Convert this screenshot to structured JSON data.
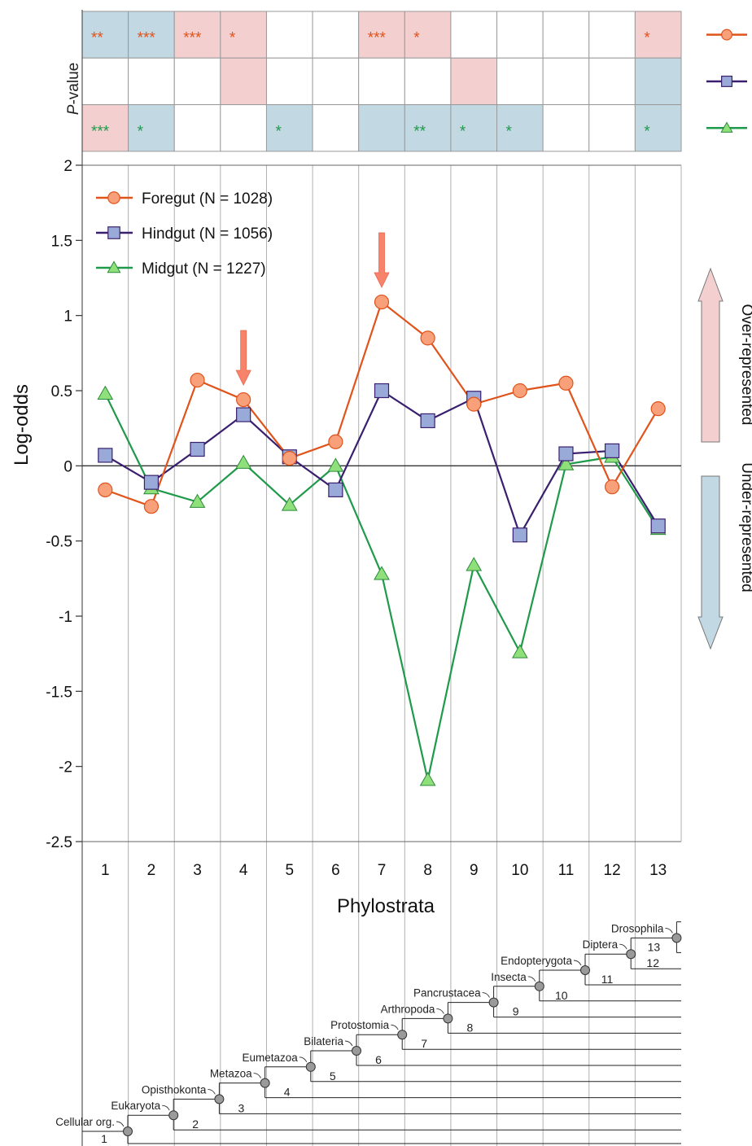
{
  "pvalue_label_prefix": "P",
  "pvalue_label_suffix": "-value",
  "pvalue_grid": {
    "foregut": [
      {
        "fill": "blue",
        "stars": "**"
      },
      {
        "fill": "blue",
        "stars": "***"
      },
      {
        "fill": "pink",
        "stars": "***"
      },
      {
        "fill": "pink",
        "stars": "*"
      },
      {
        "fill": "none",
        "stars": ""
      },
      {
        "fill": "none",
        "stars": ""
      },
      {
        "fill": "pink",
        "stars": "***"
      },
      {
        "fill": "pink",
        "stars": "*"
      },
      {
        "fill": "none",
        "stars": ""
      },
      {
        "fill": "none",
        "stars": ""
      },
      {
        "fill": "none",
        "stars": ""
      },
      {
        "fill": "none",
        "stars": ""
      },
      {
        "fill": "pink",
        "stars": "*"
      }
    ],
    "hindgut": [
      {
        "fill": "none",
        "stars": ""
      },
      {
        "fill": "none",
        "stars": ""
      },
      {
        "fill": "none",
        "stars": ""
      },
      {
        "fill": "pink",
        "stars": ""
      },
      {
        "fill": "none",
        "stars": ""
      },
      {
        "fill": "none",
        "stars": ""
      },
      {
        "fill": "none",
        "stars": ""
      },
      {
        "fill": "none",
        "stars": ""
      },
      {
        "fill": "pink",
        "stars": ""
      },
      {
        "fill": "none",
        "stars": ""
      },
      {
        "fill": "none",
        "stars": ""
      },
      {
        "fill": "none",
        "stars": ""
      },
      {
        "fill": "blue",
        "stars": ""
      }
    ],
    "midgut": [
      {
        "fill": "pink",
        "stars": "***"
      },
      {
        "fill": "blue",
        "stars": "*"
      },
      {
        "fill": "none",
        "stars": ""
      },
      {
        "fill": "none",
        "stars": ""
      },
      {
        "fill": "blue",
        "stars": "*"
      },
      {
        "fill": "none",
        "stars": ""
      },
      {
        "fill": "blue",
        "stars": ""
      },
      {
        "fill": "blue",
        "stars": "**"
      },
      {
        "fill": "blue",
        "stars": "*"
      },
      {
        "fill": "blue",
        "stars": "*"
      },
      {
        "fill": "none",
        "stars": ""
      },
      {
        "fill": "none",
        "stars": ""
      },
      {
        "fill": "blue",
        "stars": "*"
      }
    ]
  },
  "chart_data": {
    "type": "line",
    "xlabel": "Phylostrata",
    "ylabel": "Log-odds",
    "ylim": [
      -2.5,
      2
    ],
    "yticks": [
      "2",
      "1.5",
      "1",
      "0.5",
      "0",
      "-0.5",
      "-1",
      "-1.5",
      "-2",
      "-2.5"
    ],
    "x": [
      1,
      2,
      3,
      4,
      5,
      6,
      7,
      8,
      9,
      10,
      11,
      12,
      13
    ],
    "series": [
      {
        "name": "Foregut",
        "legend_label": "Foregut (N =  1028)",
        "marker": "circle",
        "line_color": "#e0531b",
        "marker_fill": "#f7a07a",
        "values": [
          -0.16,
          -0.27,
          0.57,
          0.44,
          0.05,
          0.16,
          1.09,
          0.85,
          0.41,
          0.5,
          0.55,
          -0.14,
          0.38
        ]
      },
      {
        "name": "Hindgut",
        "legend_label": "Hindgut (N =  1056)",
        "marker": "square",
        "line_color": "#3a1f6e",
        "marker_fill": "#9aaad8",
        "values": [
          0.07,
          -0.11,
          0.11,
          0.34,
          0.06,
          -0.16,
          0.5,
          0.3,
          0.45,
          -0.46,
          0.08,
          0.1,
          -0.4
        ]
      },
      {
        "name": "Midgut",
        "legend_label": "Midgut (N =  1227)",
        "marker": "triangle",
        "line_color": "#1f9a4a",
        "marker_fill": "#8fe07a",
        "values": [
          0.48,
          -0.15,
          -0.24,
          0.02,
          -0.26,
          0.0,
          -0.72,
          -2.09,
          -0.66,
          -1.24,
          0.01,
          0.06,
          -0.42
        ]
      }
    ],
    "highlight_arrows_at": [
      4,
      7
    ],
    "side_labels": {
      "over": "Over-represented",
      "under": "Under-represented"
    },
    "colors": {
      "pink": "#f4cfcf",
      "blue": "#c2d8e3",
      "arrow": "#f7836b"
    }
  },
  "tree": {
    "clades": [
      {
        "label": "Cellular org.",
        "num": "1"
      },
      {
        "label": "Eukaryota",
        "num": "2"
      },
      {
        "label": "Opisthokonta",
        "num": "3"
      },
      {
        "label": "Metazoa",
        "num": "4"
      },
      {
        "label": "Eumetazoa",
        "num": "5"
      },
      {
        "label": "Bilateria",
        "num": "6"
      },
      {
        "label": "Protostomia",
        "num": "7"
      },
      {
        "label": "Arthropoda",
        "num": "8"
      },
      {
        "label": "Pancrustacea",
        "num": "9"
      },
      {
        "label": "Insecta",
        "num": "10"
      },
      {
        "label": "Endopterygota",
        "num": "11"
      },
      {
        "label": "Diptera",
        "num": "12"
      },
      {
        "label": "Drosophila",
        "num": "13"
      }
    ]
  }
}
